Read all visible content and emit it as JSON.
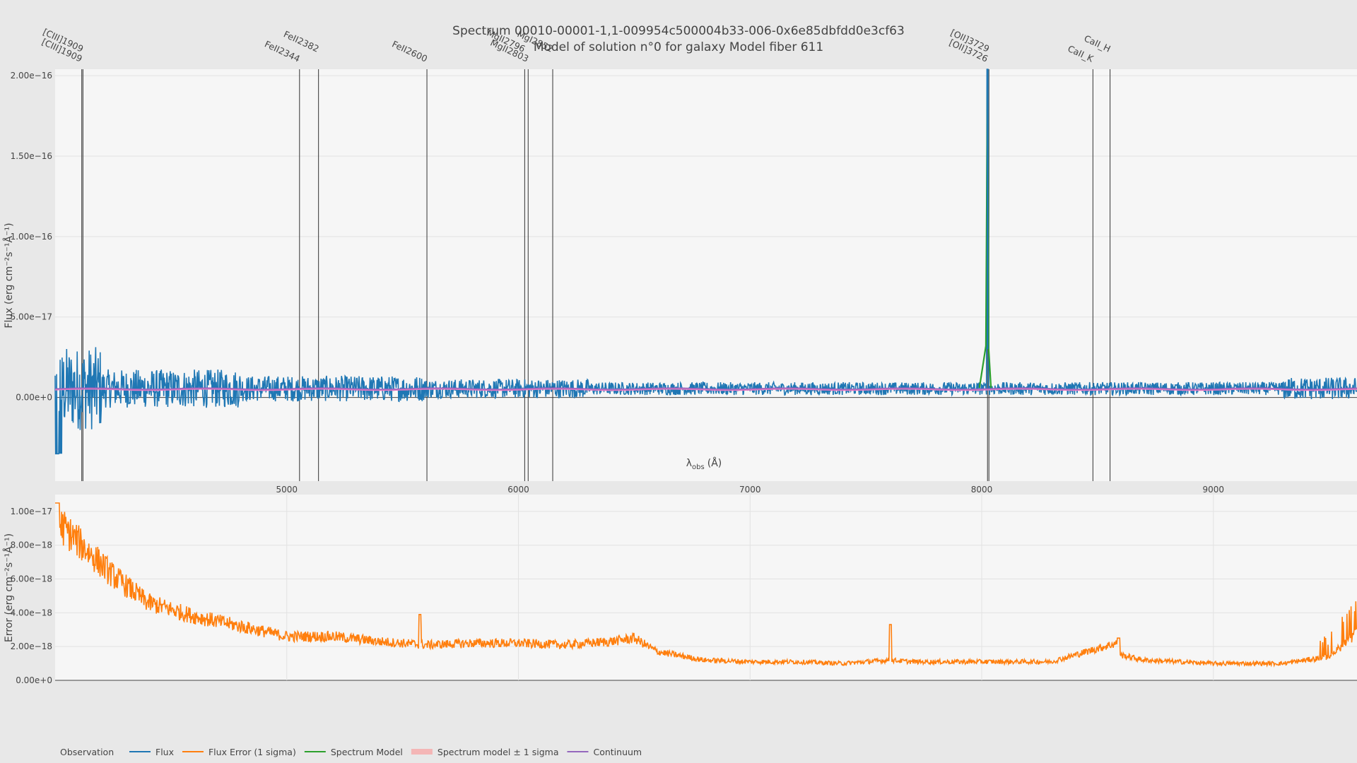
{
  "title": "Spectrum 00010-00001-1,1-009954c500004b33-006-0x6e85dbfdd0e3cf63",
  "subtitle": "Model of solution n°0 for galaxy Model fiber 611",
  "colors": {
    "flux": "#1f77b4",
    "flux_error": "#ff7f0e",
    "model": "#2ca02c",
    "model_sigma": "#f4b6b6",
    "continuum": "#9467bd",
    "pink_continuum": "#e377c2",
    "plot_bg": "#f6f6f6",
    "paper_bg": "#e8e8e8"
  },
  "chart_data": [
    {
      "type": "line",
      "panel": "top",
      "xlabel": "λ",
      "xlabel_sub": "obs",
      "xlabel_unit": "(Å)",
      "ylabel": "Flux (erg cm",
      "ylabel_full": "Flux (erg cm⁻²s⁻¹Å⁻¹)",
      "xlim": [
        4000,
        9620
      ],
      "ylim": [
        -5.2e-17,
        2.04e-16
      ],
      "x_ticks": [
        5000,
        6000,
        7000,
        8000,
        9000
      ],
      "x_tick_labels": [
        "5000",
        "6000",
        "7000",
        "8000",
        "9000"
      ],
      "y_ticks": [
        0,
        5e-17,
        1e-16,
        1.5e-16,
        2e-16
      ],
      "y_tick_labels": [
        "0.00e+0",
        "5.00e−17",
        "1.00e−16",
        "1.50e−16",
        "2.00e−16"
      ],
      "emission_lines": [
        {
          "name": "[CIII]1909",
          "x": 4115
        },
        {
          "name": "[CIII]1909",
          "x": 4120
        },
        {
          "name": "FeII2344",
          "x": 5055
        },
        {
          "name": "FeII2382",
          "x": 5137
        },
        {
          "name": "FeII2600",
          "x": 5605
        },
        {
          "name": "MgII2796",
          "x": 6027
        },
        {
          "name": "MgII2803",
          "x": 6042
        },
        {
          "name": "MgI2852",
          "x": 6148
        },
        {
          "name": "[OII]3726",
          "x": 8025
        },
        {
          "name": "[OII]3729",
          "x": 8031
        },
        {
          "name": "CaII_K",
          "x": 8480
        },
        {
          "name": "CaII_H",
          "x": 8554
        }
      ],
      "series": [
        {
          "name": "Flux",
          "approx": "noisy around 5.5e-18, amplitude decreasing with wavelength, strong peak at 8025 reaching 2.0e-16"
        },
        {
          "name": "Spectrum Model",
          "approx": "near continuum, emission peak at 8025 rising to 2.0e-16"
        },
        {
          "name": "Continuum",
          "level": 5.5e-18
        }
      ]
    },
    {
      "type": "line",
      "panel": "bottom",
      "ylabel": "Error (erg cm⁻²s⁻¹Å⁻¹)",
      "xlim": [
        4000,
        9620
      ],
      "ylim": [
        0,
        1.1e-17
      ],
      "y_ticks": [
        0,
        2e-18,
        4e-18,
        6e-18,
        8e-18,
        1e-17
      ],
      "y_tick_labels": [
        "0.00e+0",
        "2.00e−18",
        "4.00e−18",
        "6.00e−18",
        "8.00e−18",
        "1.00e−17"
      ],
      "series": [
        {
          "name": "Flux Error (1 sigma)",
          "x": [
            4000,
            4100,
            4250,
            4400,
            4600,
            4800,
            5000,
            5200,
            5400,
            5600,
            5800,
            6000,
            6200,
            6400,
            6500,
            6600,
            6800,
            7000,
            7200,
            7400,
            7600,
            7700,
            8000,
            8300,
            8580,
            8600,
            8700,
            9000,
            9300,
            9500,
            9620
          ],
          "values": [
            9.5e-18,
            8.2e-18,
            6.2e-18,
            4.6e-18,
            3.8e-18,
            3.2e-18,
            2.6e-18,
            2.6e-18,
            2.3e-18,
            2.1e-18,
            2.2e-18,
            2.2e-18,
            2.1e-18,
            2.3e-18,
            2.5e-18,
            1.7e-18,
            1.2e-18,
            1.1e-18,
            1.1e-18,
            1e-18,
            1.2e-18,
            1.1e-18,
            1.1e-18,
            1.1e-18,
            2.2e-18,
            1.5e-18,
            1.2e-18,
            1e-18,
            1e-18,
            1.4e-18,
            2.8e-18
          ]
        }
      ]
    }
  ],
  "legend": {
    "title": "Observation",
    "items": [
      {
        "label": "Flux",
        "color": "#1f77b4"
      },
      {
        "label": "Flux Error (1 sigma)",
        "color": "#ff7f0e"
      },
      {
        "label": "Spectrum Model",
        "color": "#2ca02c"
      },
      {
        "label": "Spectrum model ± 1 sigma",
        "color": "#f4b6b6"
      },
      {
        "label": "Continuum",
        "color": "#9467bd"
      }
    ]
  }
}
